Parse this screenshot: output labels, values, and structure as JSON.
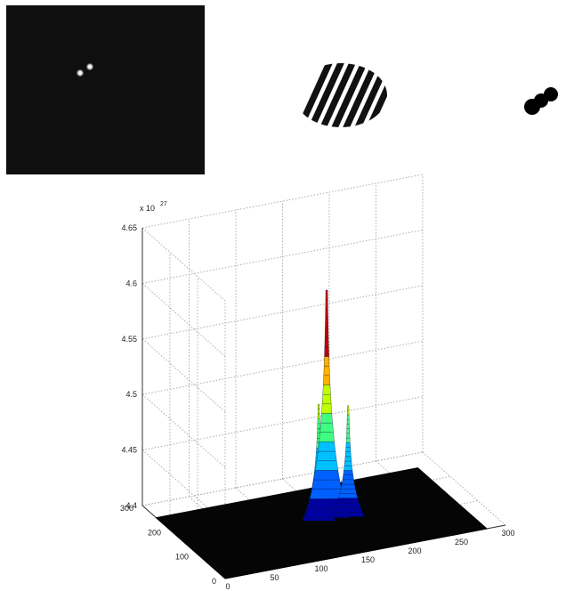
{
  "panels": {
    "photo": {
      "label": "",
      "background": "#0f0f0f",
      "spot_color": "#f2f2f2"
    },
    "fringes": {
      "label": "",
      "color": "#111111"
    },
    "binary_blobs": {
      "label": "",
      "color": "#000000"
    }
  },
  "chart_data": {
    "type": "surface",
    "title": "",
    "xlabel": "",
    "ylabel": "",
    "zlabel": "",
    "z_exponent_label": "x 10",
    "z_exponent": "27",
    "xlim": [
      0,
      300
    ],
    "ylim": [
      0,
      300
    ],
    "zlim": [
      4.4,
      4.65
    ],
    "x_ticks": [
      "0",
      "50",
      "100",
      "150",
      "200",
      "250",
      "300"
    ],
    "y_ticks": [
      "0",
      "100",
      "200",
      "300"
    ],
    "z_ticks": [
      "4.4",
      "4.45",
      "4.5",
      "4.55",
      "4.6",
      "4.65"
    ],
    "surface_extent": {
      "x": [
        0,
        280
      ],
      "y": [
        0,
        250
      ]
    },
    "baseline_z": 4.4,
    "grid": true,
    "peaks": [
      {
        "x": 150,
        "y": 140,
        "z": 4.605
      },
      {
        "x": 140,
        "y": 135,
        "z": 4.505
      },
      {
        "x": 170,
        "y": 130,
        "z": 4.5
      }
    ],
    "colormap": [
      "#0000a0",
      "#0060ff",
      "#00c0ff",
      "#40ff80",
      "#c0ff00",
      "#ffb000",
      "#c00000"
    ]
  }
}
